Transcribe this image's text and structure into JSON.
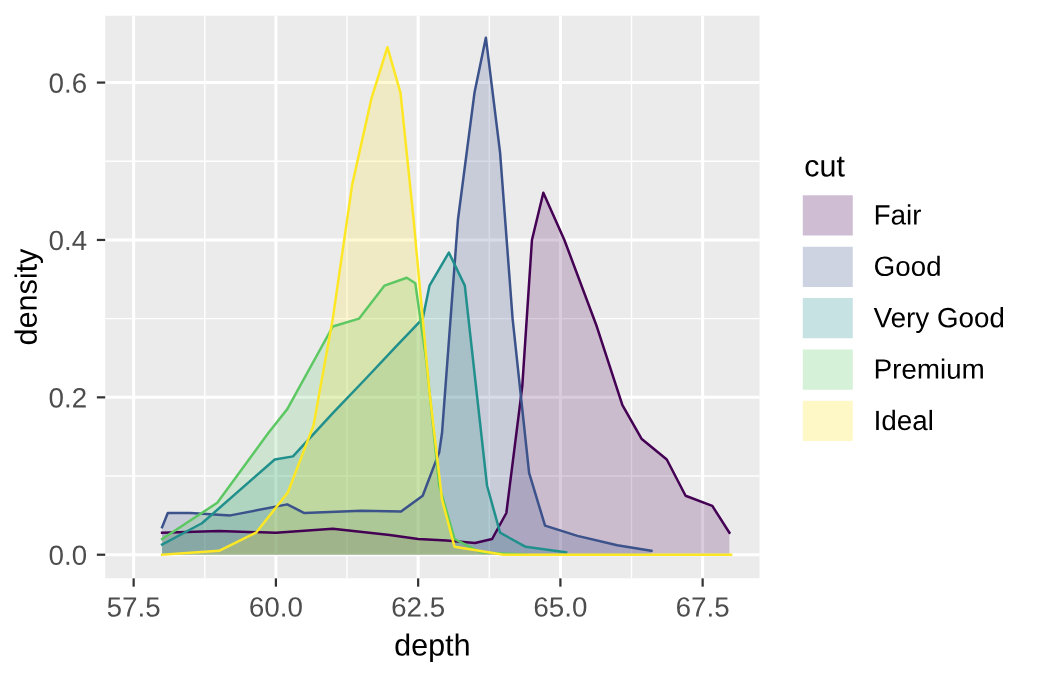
{
  "chart_data": {
    "type": "area",
    "xlabel": "depth",
    "ylabel": "density",
    "legend_title": "cut",
    "xlim": [
      57.0,
      68.5
    ],
    "ylim": [
      -0.03,
      0.685
    ],
    "xticks": [
      57.5,
      {
        "value": 60.0,
        "label": "60.0"
      },
      62.5,
      {
        "value": 65.0,
        "label": "65.0"
      },
      67.5
    ],
    "yticks": [
      {
        "value": 0,
        "label": "0.0"
      },
      0.2,
      0.4,
      0.6
    ],
    "grid": true,
    "legend": "right",
    "series": [
      {
        "name": "Fair",
        "color": "#440154",
        "x": [
          58.0,
          59.0,
          60.0,
          61.0,
          62.0,
          62.5,
          63.0,
          63.5,
          63.8,
          64.05,
          64.33,
          64.5,
          64.7,
          65.07,
          65.64,
          66.09,
          66.43,
          66.87,
          67.2,
          67.67,
          67.97
        ],
        "values": [
          0.028,
          0.03,
          0.028,
          0.033,
          0.025,
          0.02,
          0.018,
          0.015,
          0.02,
          0.053,
          0.214,
          0.4,
          0.46,
          0.4,
          0.29,
          0.19,
          0.147,
          0.121,
          0.075,
          0.062,
          0.028
        ]
      },
      {
        "name": "Good",
        "color": "#3b528b",
        "x": [
          58.0,
          58.1,
          58.5,
          59.2,
          60.2,
          60.5,
          61.5,
          62.2,
          62.58,
          62.87,
          62.92,
          63.2,
          63.49,
          63.69,
          63.94,
          64.16,
          64.45,
          64.73,
          65.3,
          66.0,
          66.6
        ],
        "values": [
          0.035,
          0.053,
          0.053,
          0.05,
          0.064,
          0.053,
          0.056,
          0.055,
          0.075,
          0.13,
          0.155,
          0.426,
          0.587,
          0.657,
          0.511,
          0.3,
          0.104,
          0.037,
          0.024,
          0.012,
          0.005
        ]
      },
      {
        "name": "Very Good",
        "color": "#21908d",
        "x": [
          58.0,
          58.7,
          59.98,
          60.3,
          61.0,
          61.57,
          62.13,
          62.58,
          62.7,
          63.04,
          63.32,
          63.49,
          63.71,
          63.94,
          64.39,
          65.1
        ],
        "values": [
          0.013,
          0.04,
          0.121,
          0.125,
          0.18,
          0.223,
          0.266,
          0.3,
          0.342,
          0.384,
          0.342,
          0.231,
          0.088,
          0.028,
          0.01,
          0.003
        ]
      },
      {
        "name": "Premium",
        "color": "#5dc863",
        "x": [
          58.0,
          58.97,
          59.87,
          60.2,
          61.0,
          61.46,
          61.91,
          62.3,
          62.45,
          62.64,
          62.87,
          63.14,
          63.6,
          64.4
        ],
        "values": [
          0.02,
          0.066,
          0.155,
          0.185,
          0.29,
          0.3,
          0.342,
          0.352,
          0.345,
          0.248,
          0.088,
          0.02,
          0.003,
          0.0
        ]
      },
      {
        "name": "Ideal",
        "color": "#fde725",
        "x": [
          58.0,
          59.0,
          59.65,
          60.21,
          60.66,
          61.0,
          61.34,
          61.68,
          61.96,
          62.19,
          62.42,
          62.7,
          62.92,
          63.14,
          64.0,
          68.0
        ],
        "values": [
          0.0,
          0.005,
          0.028,
          0.079,
          0.164,
          0.3,
          0.47,
          0.58,
          0.645,
          0.587,
          0.426,
          0.206,
          0.07,
          0.01,
          0.0,
          0.0
        ]
      }
    ]
  }
}
